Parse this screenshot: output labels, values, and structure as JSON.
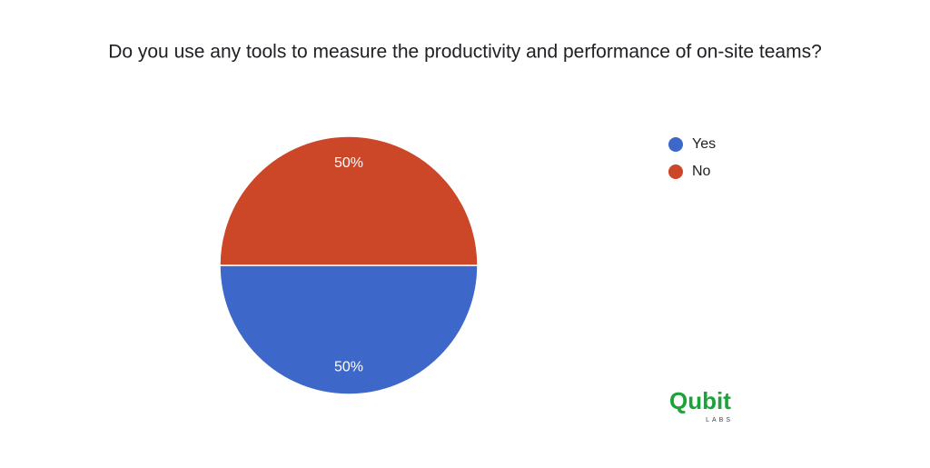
{
  "chart_data": {
    "type": "pie",
    "title": "Do you use any tools to measure the productivity and performance of on-site teams?",
    "categories": [
      "Yes",
      "No"
    ],
    "values": [
      50,
      50
    ],
    "value_labels": [
      "50%",
      "50%"
    ],
    "colors": [
      "#3d67c9",
      "#cc4628"
    ],
    "legend": "right"
  },
  "logo": {
    "name": "Qubit",
    "tagline": "LABS"
  }
}
